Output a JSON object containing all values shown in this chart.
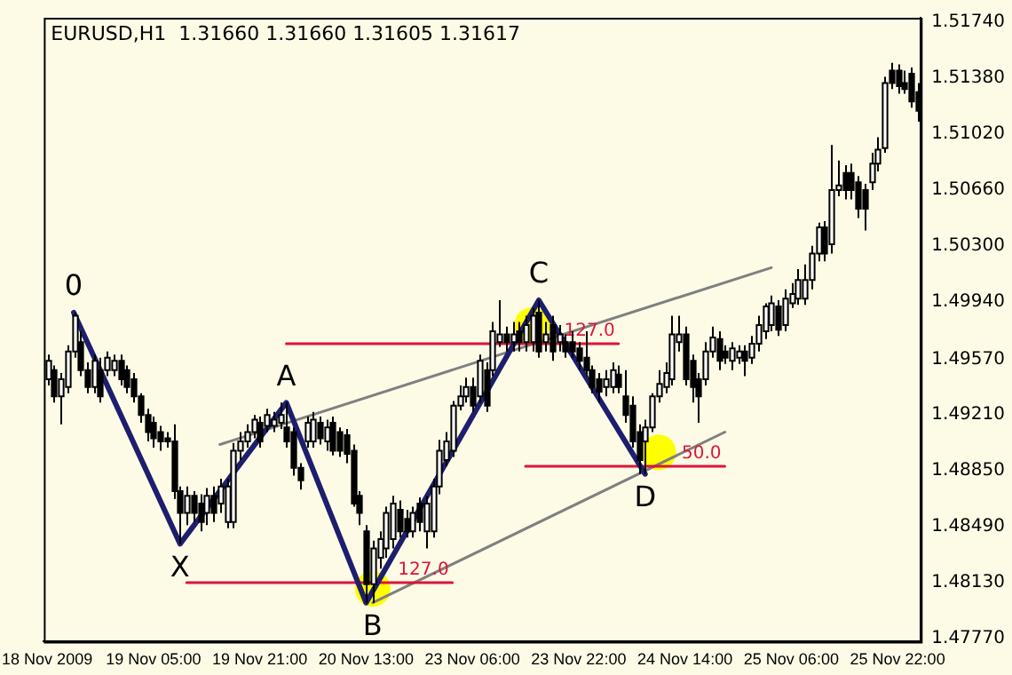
{
  "chart_data": {
    "type": "candlestick",
    "title": "EURUSD,H1  1.31660 1.31660 1.31605 1.31617",
    "categories": [
      "18 Nov 2009",
      null,
      null,
      null,
      null,
      null,
      null,
      null,
      null,
      null,
      null,
      null,
      null,
      null,
      null,
      null,
      "19 Nov 05:00",
      null,
      null,
      null,
      null,
      null,
      null,
      null,
      null,
      null,
      null,
      null,
      null,
      null,
      null,
      null,
      "19 Nov 21:00",
      null,
      null,
      null,
      null,
      null,
      null,
      null,
      null,
      null,
      null,
      null,
      null,
      null,
      null,
      null,
      "20 Nov 13:00",
      null,
      null,
      null,
      null,
      null,
      null,
      null,
      null,
      null,
      null,
      null,
      null,
      null,
      null,
      null,
      "23 Nov 06:00",
      null,
      null,
      null,
      null,
      null,
      null,
      null,
      null,
      null,
      null,
      null,
      null,
      null,
      null,
      null,
      "23 Nov 22:00",
      null,
      null,
      null,
      null,
      null,
      null,
      null,
      null,
      null,
      null,
      null,
      null,
      null,
      null,
      null,
      "24 Nov 14:00",
      null,
      null,
      null,
      null,
      null,
      null,
      null,
      null,
      null,
      null,
      null,
      null,
      null,
      null,
      null,
      "25 Nov 06:00",
      null,
      null,
      null,
      null,
      null,
      null,
      null,
      null,
      null,
      null,
      null,
      null,
      null,
      null,
      null,
      "25 Nov 22:00",
      null,
      null,
      null
    ],
    "ohlc": [
      [
        1.4944,
        1.496,
        1.494,
        1.4956
      ],
      [
        1.495,
        1.4953,
        1.4929,
        1.4933
      ],
      [
        1.4933,
        1.4948,
        1.4915,
        1.4944
      ],
      [
        1.4939,
        1.4966,
        1.4935,
        1.4962
      ],
      [
        1.4962,
        1.4987,
        1.4958,
        1.4985
      ],
      [
        1.4968,
        1.4975,
        1.4946,
        1.495
      ],
      [
        1.495,
        1.4955,
        1.4935,
        1.4939
      ],
      [
        1.4939,
        1.496,
        1.4935,
        1.4956
      ],
      [
        1.495,
        1.4958,
        1.4929,
        1.4933
      ],
      [
        1.495,
        1.4962,
        1.4946,
        1.4958
      ],
      [
        1.495,
        1.496,
        1.4946,
        1.4956
      ],
      [
        1.4956,
        1.496,
        1.494,
        1.4944
      ],
      [
        1.495,
        1.4953,
        1.4935,
        1.4939
      ],
      [
        1.4944,
        1.4948,
        1.4929,
        1.4933
      ],
      [
        1.4933,
        1.4935,
        1.4916,
        1.4921
      ],
      [
        1.4921,
        1.4925,
        1.4904,
        1.491
      ],
      [
        1.4916,
        1.492,
        1.49,
        1.4906
      ],
      [
        1.491,
        1.4914,
        1.4898,
        1.4904
      ],
      [
        1.4906,
        1.491,
        1.49,
        1.4904
      ],
      [
        1.4904,
        1.4915,
        1.4867,
        1.4872
      ],
      [
        1.4872,
        1.4875,
        1.4838,
        1.4858
      ],
      [
        1.4858,
        1.4875,
        1.485,
        1.4869
      ],
      [
        1.4869,
        1.4872,
        1.4852,
        1.4858
      ],
      [
        1.4864,
        1.487,
        1.4846,
        1.4852
      ],
      [
        1.4858,
        1.4874,
        1.485,
        1.4869
      ],
      [
        1.4869,
        1.4875,
        1.4852,
        1.4858
      ],
      [
        1.4864,
        1.488,
        1.4858,
        1.4875
      ],
      [
        1.4852,
        1.488,
        1.4848,
        1.4875
      ],
      [
        1.4852,
        1.4903,
        1.4848,
        1.4898
      ],
      [
        1.4898,
        1.491,
        1.4892,
        1.4904
      ],
      [
        1.4904,
        1.4915,
        1.49,
        1.491
      ],
      [
        1.491,
        1.4921,
        1.4906,
        1.4918
      ],
      [
        1.4916,
        1.492,
        1.49,
        1.4904
      ],
      [
        1.4914,
        1.4925,
        1.491,
        1.4921
      ],
      [
        1.4914,
        1.4923,
        1.491,
        1.4918
      ],
      [
        1.4916,
        1.4929,
        1.4912,
        1.4921
      ],
      [
        1.4913,
        1.4929,
        1.49,
        1.4904
      ],
      [
        1.491,
        1.4913,
        1.4882,
        1.4887
      ],
      [
        1.4887,
        1.489,
        1.4873,
        1.4879
      ],
      [
        1.4904,
        1.492,
        1.49,
        1.4916
      ],
      [
        1.4904,
        1.4923,
        1.49,
        1.4918
      ],
      [
        1.4916,
        1.492,
        1.4902,
        1.4906
      ],
      [
        1.4904,
        1.4918,
        1.4898,
        1.4913
      ],
      [
        1.4916,
        1.492,
        1.4895,
        1.4898
      ],
      [
        1.491,
        1.4913,
        1.4894,
        1.4898
      ],
      [
        1.4908,
        1.4912,
        1.489,
        1.4896
      ],
      [
        1.4898,
        1.4902,
        1.4862,
        1.4864
      ],
      [
        1.4869,
        1.4872,
        1.485,
        1.4858
      ],
      [
        1.4846,
        1.485,
        1.48,
        1.4812
      ],
      [
        1.4812,
        1.484,
        1.48,
        1.4835
      ],
      [
        1.4829,
        1.4846,
        1.4822,
        1.4841
      ],
      [
        1.4835,
        1.4862,
        1.4829,
        1.4858
      ],
      [
        1.4841,
        1.4869,
        1.4835,
        1.4864
      ],
      [
        1.486,
        1.4866,
        1.4842,
        1.4846
      ],
      [
        1.4854,
        1.486,
        1.4842,
        1.4846
      ],
      [
        1.4846,
        1.4862,
        1.4842,
        1.4858
      ],
      [
        1.4864,
        1.4868,
        1.4846,
        1.4852
      ],
      [
        1.4846,
        1.4869,
        1.4835,
        1.4864
      ],
      [
        1.4846,
        1.488,
        1.4842,
        1.4875
      ],
      [
        1.4875,
        1.4905,
        1.487,
        1.4898
      ],
      [
        1.4892,
        1.491,
        1.4888,
        1.4904
      ],
      [
        1.4898,
        1.493,
        1.4894,
        1.4927
      ],
      [
        1.4927,
        1.494,
        1.4924,
        1.4933
      ],
      [
        1.4933,
        1.4945,
        1.4929,
        1.4939
      ],
      [
        1.4939,
        1.4945,
        1.4923,
        1.4927
      ],
      [
        1.4933,
        1.496,
        1.4929,
        1.4956
      ],
      [
        1.495,
        1.4955,
        1.4923,
        1.4927
      ],
      [
        1.495,
        1.4981,
        1.4946,
        1.4975
      ],
      [
        1.4968,
        1.4995,
        1.4965,
        1.4973
      ],
      [
        1.4973,
        1.4978,
        1.4962,
        1.4968
      ],
      [
        1.4968,
        1.4981,
        1.4962,
        1.4973
      ],
      [
        1.4975,
        1.4981,
        1.4962,
        1.4968
      ],
      [
        1.4968,
        1.4985,
        1.4962,
        1.4979
      ],
      [
        1.4968,
        1.499,
        1.4962,
        1.4985
      ],
      [
        1.4987,
        1.4995,
        1.4958,
        1.4962
      ],
      [
        1.4968,
        1.4981,
        1.4962,
        1.4973
      ],
      [
        1.4979,
        1.4985,
        1.4956,
        1.4962
      ],
      [
        1.4968,
        1.4979,
        1.4962,
        1.4973
      ],
      [
        1.4968,
        1.4973,
        1.4958,
        1.4962
      ],
      [
        1.4968,
        1.4975,
        1.4958,
        1.4962
      ],
      [
        1.4964,
        1.4968,
        1.495,
        1.4956
      ],
      [
        1.4958,
        1.4975,
        1.4946,
        1.495
      ],
      [
        1.495,
        1.4953,
        1.4935,
        1.4939
      ],
      [
        1.4944,
        1.4948,
        1.4929,
        1.4936
      ],
      [
        1.4939,
        1.495,
        1.4933,
        1.4944
      ],
      [
        1.4939,
        1.4955,
        1.4935,
        1.495
      ],
      [
        1.4947,
        1.4953,
        1.4935,
        1.4939
      ],
      [
        1.4933,
        1.495,
        1.4916,
        1.4921
      ],
      [
        1.4927,
        1.4933,
        1.49,
        1.4904
      ],
      [
        1.491,
        1.4915,
        1.4883,
        1.4892
      ],
      [
        1.4904,
        1.4918,
        1.4883,
        1.4913
      ],
      [
        1.4913,
        1.4935,
        1.491,
        1.4933
      ],
      [
        1.4933,
        1.495,
        1.4929,
        1.4941
      ],
      [
        1.4939,
        1.4955,
        1.4935,
        1.4948
      ],
      [
        1.4944,
        1.4985,
        1.494,
        1.4973
      ],
      [
        1.4968,
        1.4985,
        1.4962,
        1.4973
      ],
      [
        1.4973,
        1.4978,
        1.494,
        1.4944
      ],
      [
        1.4956,
        1.496,
        1.4929,
        1.4939
      ],
      [
        1.4944,
        1.4948,
        1.4916,
        1.4933
      ],
      [
        1.4944,
        1.4968,
        1.494,
        1.4962
      ],
      [
        1.4962,
        1.4978,
        1.4958,
        1.4971
      ],
      [
        1.497,
        1.4975,
        1.495,
        1.4956
      ],
      [
        1.4962,
        1.4966,
        1.4954,
        1.4958
      ],
      [
        1.4956,
        1.4968,
        1.495,
        1.4964
      ],
      [
        1.4958,
        1.4966,
        1.4954,
        1.4962
      ],
      [
        1.4962,
        1.4966,
        1.4946,
        1.4956
      ],
      [
        1.4958,
        1.4972,
        1.4954,
        1.4967
      ],
      [
        1.4967,
        1.4985,
        1.4962,
        1.4979
      ],
      [
        1.4975,
        1.4993,
        1.497,
        1.4991
      ],
      [
        1.4979,
        1.4998,
        1.4975,
        1.4993
      ],
      [
        1.4991,
        1.4995,
        1.4972,
        1.4976
      ],
      [
        1.4979,
        1.5002,
        1.4975,
        1.4996
      ],
      [
        1.4993,
        1.5006,
        1.499,
        1.4999
      ],
      [
        1.4996,
        1.5015,
        1.4992,
        1.5008
      ],
      [
        1.4996,
        1.5018,
        1.4992,
        1.5008
      ],
      [
        1.5008,
        1.503,
        1.5002,
        1.5025
      ],
      [
        1.5025,
        1.5045,
        1.502,
        1.5042
      ],
      [
        1.5042,
        1.5046,
        1.502,
        1.5025
      ],
      [
        1.5031,
        1.5095,
        1.5025,
        1.5066
      ],
      [
        1.5066,
        1.5085,
        1.5062,
        1.5069
      ],
      [
        1.5077,
        1.5082,
        1.506,
        1.5066
      ],
      [
        1.5077,
        1.5083,
        1.506,
        1.5066
      ],
      [
        1.5071,
        1.5075,
        1.5048,
        1.5054
      ],
      [
        1.5066,
        1.507,
        1.504,
        1.5054
      ],
      [
        1.5071,
        1.509,
        1.5066,
        1.5083
      ],
      [
        1.5083,
        1.51,
        1.5078,
        1.5092
      ],
      [
        1.5093,
        1.5139,
        1.509,
        1.5135
      ],
      [
        1.5143,
        1.5148,
        1.5131,
        1.5135
      ],
      [
        1.5143,
        1.5147,
        1.5128,
        1.5133
      ],
      [
        1.5135,
        1.5143,
        1.5128,
        1.5131
      ],
      [
        1.5141,
        1.5145,
        1.5119,
        1.5123
      ],
      [
        1.5129,
        1.5135,
        1.511,
        1.5117
      ]
    ],
    "series": [
      {
        "type": "scatter",
        "color": "#ffff00",
        "values": [
          null,
          null,
          null,
          null,
          null,
          null,
          null,
          null,
          null,
          null,
          null,
          null,
          null,
          null,
          null,
          null,
          null,
          null,
          null,
          null,
          null,
          null,
          null,
          null,
          null,
          null,
          null,
          null,
          null,
          null,
          null,
          null,
          null,
          null,
          null,
          null,
          null,
          null,
          null,
          null,
          null,
          null,
          null,
          null,
          null,
          null,
          null,
          null,
          null,
          1.4809,
          null,
          null,
          null,
          null,
          null,
          null,
          null,
          null,
          null,
          null,
          null,
          null,
          null,
          null,
          null,
          null,
          null,
          null,
          null,
          null,
          null,
          null,
          null,
          1.4979,
          null,
          null,
          null,
          null,
          null,
          null,
          null,
          null,
          null,
          null,
          null,
          null,
          null,
          null,
          null,
          null,
          null,
          null,
          1.4897,
          null,
          null,
          null,
          null,
          null,
          null,
          null,
          null,
          null,
          null,
          null,
          null,
          null,
          null,
          null,
          null,
          null,
          null,
          null,
          null,
          null,
          null,
          null,
          null,
          null,
          null,
          null,
          null,
          null,
          null,
          null,
          null,
          null,
          null,
          null,
          null,
          null,
          null,
          null
        ]
      },
      {
        "type": "line",
        "color": "#808080",
        "values": [
          null,
          null,
          null,
          null,
          null,
          null,
          null,
          null,
          null,
          null,
          null,
          null,
          null,
          null,
          null,
          null,
          null,
          null,
          null,
          null,
          null,
          null,
          null,
          null,
          null,
          null,
          1.4902,
          null,
          null,
          null,
          null,
          null,
          null,
          null,
          null,
          null,
          null,
          null,
          null,
          null,
          null,
          null,
          null,
          null,
          null,
          null,
          null,
          null,
          null,
          null,
          null,
          null,
          null,
          null,
          null,
          null,
          null,
          null,
          null,
          null,
          null,
          null,
          null,
          null,
          null,
          null,
          null,
          null,
          null,
          null,
          null,
          null,
          null,
          null,
          null,
          null,
          null,
          null,
          null,
          null,
          null,
          null,
          null,
          null,
          null,
          null,
          null,
          null,
          null,
          null,
          null,
          null,
          null,
          null,
          null,
          null,
          null,
          null,
          null,
          null,
          null,
          null,
          null,
          null,
          null,
          null,
          null,
          null,
          null,
          1.5016,
          null,
          null,
          null,
          null,
          null,
          null,
          null,
          null,
          null,
          null,
          null,
          null,
          null,
          null,
          null,
          null,
          null,
          null,
          null,
          null,
          null,
          null
        ]
      },
      {
        "type": "line",
        "color": "#808080",
        "values": [
          null,
          null,
          null,
          null,
          null,
          null,
          null,
          null,
          null,
          null,
          null,
          null,
          null,
          null,
          null,
          null,
          null,
          null,
          null,
          null,
          null,
          null,
          null,
          null,
          null,
          null,
          null,
          null,
          null,
          null,
          null,
          null,
          null,
          null,
          null,
          null,
          null,
          null,
          null,
          null,
          null,
          null,
          null,
          null,
          null,
          null,
          null,
          null,
          null,
          1.48,
          null,
          null,
          null,
          null,
          null,
          null,
          null,
          null,
          null,
          null,
          null,
          null,
          null,
          null,
          null,
          null,
          null,
          null,
          null,
          null,
          null,
          null,
          null,
          null,
          null,
          null,
          null,
          null,
          null,
          null,
          null,
          null,
          null,
          null,
          null,
          null,
          null,
          null,
          null,
          null,
          null,
          null,
          null,
          null,
          null,
          null,
          null,
          null,
          null,
          null,
          null,
          null,
          1.491,
          null,
          null,
          null,
          null,
          null,
          null,
          null,
          null,
          null,
          null,
          null,
          null,
          null,
          null,
          null,
          null,
          null,
          null,
          null,
          null,
          null,
          null,
          null,
          null,
          null,
          null,
          null,
          null,
          null
        ]
      },
      {
        "type": "line",
        "name": "127.0",
        "color": "#dc143c",
        "values": [
          null,
          null,
          null,
          null,
          null,
          null,
          null,
          null,
          null,
          null,
          null,
          null,
          null,
          null,
          null,
          null,
          null,
          null,
          null,
          null,
          null,
          null,
          null,
          null,
          null,
          null,
          null,
          null,
          null,
          null,
          null,
          null,
          null,
          null,
          null,
          null,
          1.4967,
          null,
          null,
          null,
          null,
          null,
          null,
          null,
          null,
          null,
          null,
          null,
          null,
          null,
          null,
          null,
          null,
          null,
          null,
          null,
          null,
          null,
          null,
          null,
          null,
          null,
          null,
          null,
          null,
          null,
          null,
          null,
          null,
          null,
          null,
          null,
          null,
          null,
          null,
          null,
          null,
          null,
          null,
          null,
          null,
          null,
          null,
          null,
          null,
          null,
          1.4967,
          null,
          null,
          null,
          null,
          null,
          null,
          null,
          null,
          null,
          null,
          null,
          null,
          null,
          null,
          null,
          null,
          null,
          null,
          null,
          null,
          null,
          null,
          null,
          null,
          null,
          null,
          null,
          null,
          null,
          null,
          null,
          null,
          null,
          null,
          null,
          null,
          null,
          null,
          null,
          null,
          null,
          null,
          null,
          null,
          null
        ]
      },
      {
        "type": "line",
        "name": "127.0",
        "color": "#dc143c",
        "values": [
          null,
          null,
          null,
          null,
          null,
          null,
          null,
          null,
          null,
          null,
          null,
          null,
          null,
          null,
          null,
          null,
          null,
          null,
          null,
          null,
          null,
          1.4813,
          null,
          null,
          null,
          null,
          null,
          null,
          null,
          null,
          null,
          null,
          null,
          null,
          null,
          null,
          null,
          null,
          null,
          null,
          null,
          null,
          null,
          null,
          null,
          null,
          null,
          null,
          null,
          null,
          null,
          null,
          null,
          null,
          null,
          null,
          null,
          null,
          null,
          null,
          null,
          1.4813,
          null,
          null,
          null,
          null,
          null,
          null,
          null,
          null,
          null,
          null,
          null,
          null,
          null,
          null,
          null,
          null,
          null,
          null,
          null,
          null,
          null,
          null,
          null,
          null,
          null,
          null,
          null,
          null,
          null,
          null,
          null,
          null,
          null,
          null,
          null,
          null,
          null,
          null,
          null,
          null,
          null,
          null,
          null,
          null,
          null,
          null,
          null,
          null,
          null,
          null,
          null,
          null,
          null,
          null,
          null,
          null,
          null,
          null,
          null,
          null,
          null,
          null,
          null,
          null,
          null,
          null,
          null,
          null,
          null,
          null
        ]
      },
      {
        "type": "line",
        "name": "50.0",
        "color": "#dc143c",
        "values": [
          null,
          null,
          null,
          null,
          null,
          null,
          null,
          null,
          null,
          null,
          null,
          null,
          null,
          null,
          null,
          null,
          null,
          null,
          null,
          null,
          null,
          null,
          null,
          null,
          null,
          null,
          null,
          null,
          null,
          null,
          null,
          null,
          null,
          null,
          null,
          null,
          null,
          null,
          null,
          null,
          null,
          null,
          null,
          null,
          null,
          null,
          null,
          null,
          null,
          null,
          null,
          null,
          null,
          null,
          null,
          null,
          null,
          null,
          null,
          null,
          null,
          null,
          null,
          null,
          null,
          null,
          null,
          null,
          null,
          null,
          null,
          null,
          1.4888,
          null,
          null,
          null,
          null,
          null,
          null,
          null,
          null,
          null,
          null,
          null,
          null,
          null,
          null,
          null,
          null,
          null,
          null,
          null,
          null,
          null,
          null,
          null,
          null,
          null,
          null,
          null,
          null,
          null,
          1.4888,
          null,
          null,
          null,
          null,
          null,
          null,
          null,
          null,
          null,
          null,
          null,
          null,
          null,
          null,
          null,
          null,
          null,
          null,
          null,
          null,
          null,
          null,
          null,
          null,
          null,
          null,
          null,
          null,
          null
        ]
      },
      {
        "type": "line",
        "color": "#1e1e6e",
        "values": [
          null,
          null,
          null,
          null,
          1.4987,
          null,
          null,
          null,
          null,
          null,
          null,
          null,
          null,
          null,
          null,
          null,
          null,
          null,
          null,
          null,
          1.4838,
          null,
          null,
          null,
          null,
          null,
          null,
          null,
          null,
          null,
          null,
          null,
          null,
          null,
          null,
          null,
          1.4929,
          null,
          null,
          null,
          null,
          null,
          null,
          null,
          null,
          null,
          null,
          null,
          1.48,
          null,
          null,
          null,
          null,
          null,
          null,
          null,
          null,
          null,
          null,
          null,
          null,
          null,
          null,
          null,
          null,
          null,
          null,
          null,
          null,
          null,
          null,
          null,
          null,
          null,
          1.4995,
          null,
          null,
          null,
          null,
          null,
          null,
          null,
          null,
          null,
          null,
          null,
          null,
          null,
          null,
          null,
          1.4883,
          null,
          null,
          null,
          null,
          null,
          null,
          null,
          null,
          null,
          null,
          null,
          null,
          null,
          null,
          null,
          null,
          null,
          null,
          null,
          null,
          null,
          null,
          null,
          null,
          null,
          null,
          null,
          null,
          null,
          null,
          null,
          null,
          null,
          null,
          null,
          null,
          null,
          null,
          null,
          null,
          null
        ]
      }
    ],
    "annotations": [
      {
        "text": "0",
        "y": 1.4987
      },
      {
        "text": "X",
        "y": 1.4838
      },
      {
        "text": "A",
        "y": 1.4929
      },
      {
        "text": "B",
        "y": 1.48
      },
      {
        "text": "C",
        "y": 1.4995
      },
      {
        "text": "D",
        "y": 1.4883
      }
    ],
    "ylim": [
      1.4775,
      1.5177
    ],
    "yticks": [
      {
        "value": 1.4777,
        "label": "1.47770"
      },
      {
        "value": 1.4813,
        "label": "1.48130"
      },
      {
        "value": 1.4849,
        "label": "1.48490"
      },
      {
        "value": 1.4885,
        "label": "1.48850"
      },
      {
        "value": 1.4921,
        "label": "1.49210"
      },
      {
        "value": 1.4957,
        "label": "1.49570"
      },
      {
        "value": 1.4994,
        "label": "1.49940"
      },
      {
        "value": 1.503,
        "label": "1.50300"
      },
      {
        "value": 1.5066,
        "label": "1.50660"
      },
      {
        "value": 1.5102,
        "label": "1.51020"
      },
      {
        "value": 1.5138,
        "label": "1.51380"
      },
      {
        "value": 1.5174,
        "label": "1.51740"
      }
    ]
  }
}
